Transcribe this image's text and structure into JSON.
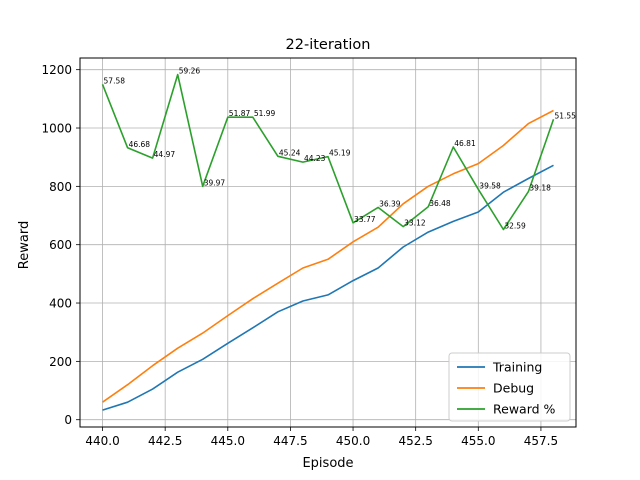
{
  "chart_data": {
    "type": "line",
    "title": "22-iteration",
    "xlabel": "Episode",
    "ylabel": "Reward",
    "xlim": [
      439.1,
      458.9
    ],
    "ylim": [
      -25,
      1240
    ],
    "xticks": [
      440.0,
      442.5,
      445.0,
      447.5,
      450.0,
      452.5,
      455.0,
      457.5
    ],
    "xtick_labels": [
      "440.0",
      "442.5",
      "445.0",
      "447.5",
      "450.0",
      "452.5",
      "455.0",
      "457.5"
    ],
    "yticks": [
      0,
      200,
      400,
      600,
      800,
      1000,
      1200
    ],
    "ytick_labels": [
      "0",
      "200",
      "400",
      "600",
      "800",
      "1000",
      "1200"
    ],
    "grid": true,
    "legend_position": "lower-right",
    "x": [
      440,
      441,
      442,
      443,
      444,
      445,
      446,
      447,
      448,
      449,
      450,
      451,
      452,
      453,
      454,
      455,
      456,
      457,
      458
    ],
    "series": [
      {
        "name": "Training",
        "color": "#1f77b4",
        "values": [
          33,
          60,
          105,
          163,
          207,
          262,
          315,
          370,
          407,
          428,
          477,
          520,
          592,
          643,
          680,
          712,
          780,
          827,
          872
        ]
      },
      {
        "name": "Debug",
        "color": "#ff7f0e",
        "values": [
          60,
          120,
          185,
          245,
          297,
          357,
          415,
          468,
          520,
          550,
          610,
          660,
          740,
          800,
          843,
          878,
          940,
          1015,
          1060
        ]
      },
      {
        "name": "Reward %",
        "color": "#2ca02c",
        "values": [
          1150,
          932,
          897,
          1183,
          800,
          1037,
          1037,
          903,
          883,
          902,
          675,
          728,
          662,
          730,
          935,
          790,
          652,
          782,
          1030
        ],
        "point_labels": [
          "57.58",
          "46.68",
          "44.97",
          "59.26",
          "39.97",
          "51.87",
          "51.99",
          "45.24",
          "44.23",
          "45.19",
          "33.77",
          "36.39",
          "33.12",
          "36.48",
          "46.81",
          "39.58",
          "32.59",
          "39.18",
          "51.55"
        ]
      }
    ]
  }
}
